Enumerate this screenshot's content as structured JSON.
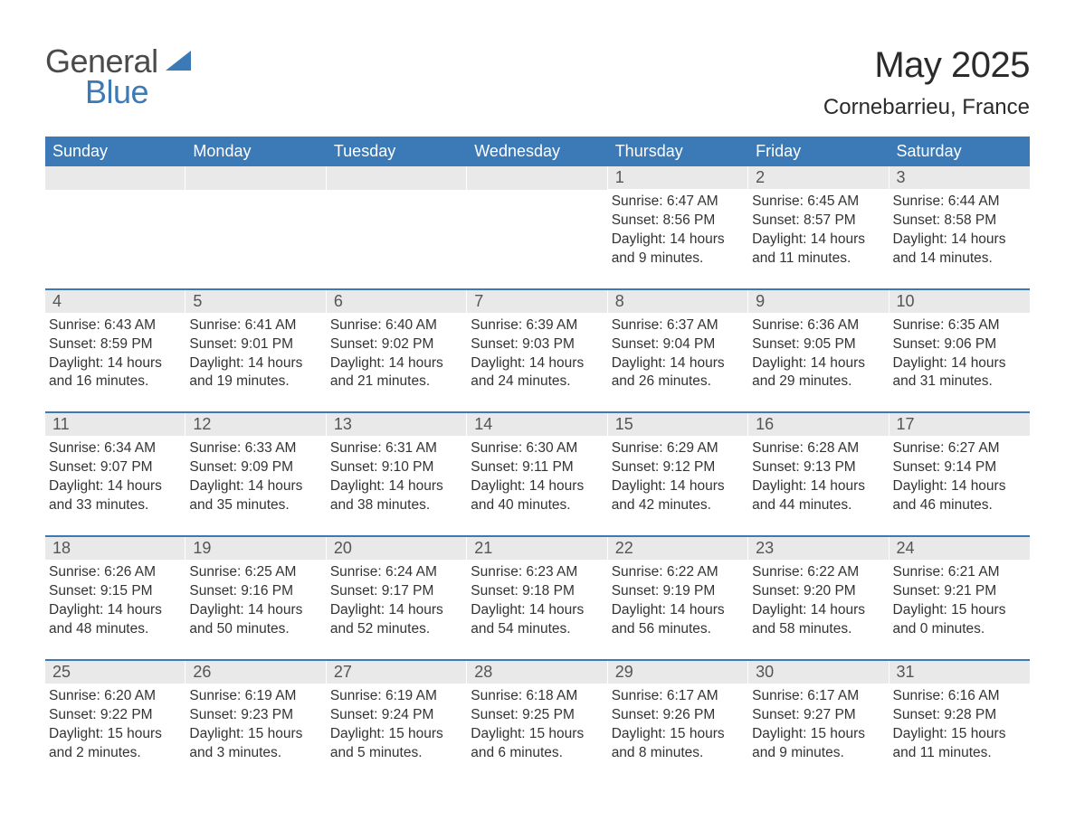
{
  "logo": {
    "word1": "General",
    "word2": "Blue",
    "tri_color": "#3b79b7"
  },
  "title": "May 2025",
  "subtitle": "Cornebarrieu, France",
  "colors": {
    "header_bg": "#3b79b7",
    "header_text": "#ffffff",
    "daynum_bg": "#e9e9e9",
    "daynum_text": "#555555",
    "body_text": "#333333",
    "week_border": "#3b79b7",
    "page_bg": "#ffffff"
  },
  "typography": {
    "title_fontsize": 40,
    "subtitle_fontsize": 24,
    "dow_fontsize": 18,
    "daynum_fontsize": 18,
    "body_fontsize": 15.5,
    "font_family": "Arial"
  },
  "calendar": {
    "type": "table",
    "columns": [
      "Sunday",
      "Monday",
      "Tuesday",
      "Wednesday",
      "Thursday",
      "Friday",
      "Saturday"
    ],
    "weeks": [
      [
        {
          "day": null
        },
        {
          "day": null
        },
        {
          "day": null
        },
        {
          "day": null
        },
        {
          "day": "1",
          "sunrise": "Sunrise: 6:47 AM",
          "sunset": "Sunset: 8:56 PM",
          "daylight": "Daylight: 14 hours and 9 minutes."
        },
        {
          "day": "2",
          "sunrise": "Sunrise: 6:45 AM",
          "sunset": "Sunset: 8:57 PM",
          "daylight": "Daylight: 14 hours and 11 minutes."
        },
        {
          "day": "3",
          "sunrise": "Sunrise: 6:44 AM",
          "sunset": "Sunset: 8:58 PM",
          "daylight": "Daylight: 14 hours and 14 minutes."
        }
      ],
      [
        {
          "day": "4",
          "sunrise": "Sunrise: 6:43 AM",
          "sunset": "Sunset: 8:59 PM",
          "daylight": "Daylight: 14 hours and 16 minutes."
        },
        {
          "day": "5",
          "sunrise": "Sunrise: 6:41 AM",
          "sunset": "Sunset: 9:01 PM",
          "daylight": "Daylight: 14 hours and 19 minutes."
        },
        {
          "day": "6",
          "sunrise": "Sunrise: 6:40 AM",
          "sunset": "Sunset: 9:02 PM",
          "daylight": "Daylight: 14 hours and 21 minutes."
        },
        {
          "day": "7",
          "sunrise": "Sunrise: 6:39 AM",
          "sunset": "Sunset: 9:03 PM",
          "daylight": "Daylight: 14 hours and 24 minutes."
        },
        {
          "day": "8",
          "sunrise": "Sunrise: 6:37 AM",
          "sunset": "Sunset: 9:04 PM",
          "daylight": "Daylight: 14 hours and 26 minutes."
        },
        {
          "day": "9",
          "sunrise": "Sunrise: 6:36 AM",
          "sunset": "Sunset: 9:05 PM",
          "daylight": "Daylight: 14 hours and 29 minutes."
        },
        {
          "day": "10",
          "sunrise": "Sunrise: 6:35 AM",
          "sunset": "Sunset: 9:06 PM",
          "daylight": "Daylight: 14 hours and 31 minutes."
        }
      ],
      [
        {
          "day": "11",
          "sunrise": "Sunrise: 6:34 AM",
          "sunset": "Sunset: 9:07 PM",
          "daylight": "Daylight: 14 hours and 33 minutes."
        },
        {
          "day": "12",
          "sunrise": "Sunrise: 6:33 AM",
          "sunset": "Sunset: 9:09 PM",
          "daylight": "Daylight: 14 hours and 35 minutes."
        },
        {
          "day": "13",
          "sunrise": "Sunrise: 6:31 AM",
          "sunset": "Sunset: 9:10 PM",
          "daylight": "Daylight: 14 hours and 38 minutes."
        },
        {
          "day": "14",
          "sunrise": "Sunrise: 6:30 AM",
          "sunset": "Sunset: 9:11 PM",
          "daylight": "Daylight: 14 hours and 40 minutes."
        },
        {
          "day": "15",
          "sunrise": "Sunrise: 6:29 AM",
          "sunset": "Sunset: 9:12 PM",
          "daylight": "Daylight: 14 hours and 42 minutes."
        },
        {
          "day": "16",
          "sunrise": "Sunrise: 6:28 AM",
          "sunset": "Sunset: 9:13 PM",
          "daylight": "Daylight: 14 hours and 44 minutes."
        },
        {
          "day": "17",
          "sunrise": "Sunrise: 6:27 AM",
          "sunset": "Sunset: 9:14 PM",
          "daylight": "Daylight: 14 hours and 46 minutes."
        }
      ],
      [
        {
          "day": "18",
          "sunrise": "Sunrise: 6:26 AM",
          "sunset": "Sunset: 9:15 PM",
          "daylight": "Daylight: 14 hours and 48 minutes."
        },
        {
          "day": "19",
          "sunrise": "Sunrise: 6:25 AM",
          "sunset": "Sunset: 9:16 PM",
          "daylight": "Daylight: 14 hours and 50 minutes."
        },
        {
          "day": "20",
          "sunrise": "Sunrise: 6:24 AM",
          "sunset": "Sunset: 9:17 PM",
          "daylight": "Daylight: 14 hours and 52 minutes."
        },
        {
          "day": "21",
          "sunrise": "Sunrise: 6:23 AM",
          "sunset": "Sunset: 9:18 PM",
          "daylight": "Daylight: 14 hours and 54 minutes."
        },
        {
          "day": "22",
          "sunrise": "Sunrise: 6:22 AM",
          "sunset": "Sunset: 9:19 PM",
          "daylight": "Daylight: 14 hours and 56 minutes."
        },
        {
          "day": "23",
          "sunrise": "Sunrise: 6:22 AM",
          "sunset": "Sunset: 9:20 PM",
          "daylight": "Daylight: 14 hours and 58 minutes."
        },
        {
          "day": "24",
          "sunrise": "Sunrise: 6:21 AM",
          "sunset": "Sunset: 9:21 PM",
          "daylight": "Daylight: 15 hours and 0 minutes."
        }
      ],
      [
        {
          "day": "25",
          "sunrise": "Sunrise: 6:20 AM",
          "sunset": "Sunset: 9:22 PM",
          "daylight": "Daylight: 15 hours and 2 minutes."
        },
        {
          "day": "26",
          "sunrise": "Sunrise: 6:19 AM",
          "sunset": "Sunset: 9:23 PM",
          "daylight": "Daylight: 15 hours and 3 minutes."
        },
        {
          "day": "27",
          "sunrise": "Sunrise: 6:19 AM",
          "sunset": "Sunset: 9:24 PM",
          "daylight": "Daylight: 15 hours and 5 minutes."
        },
        {
          "day": "28",
          "sunrise": "Sunrise: 6:18 AM",
          "sunset": "Sunset: 9:25 PM",
          "daylight": "Daylight: 15 hours and 6 minutes."
        },
        {
          "day": "29",
          "sunrise": "Sunrise: 6:17 AM",
          "sunset": "Sunset: 9:26 PM",
          "daylight": "Daylight: 15 hours and 8 minutes."
        },
        {
          "day": "30",
          "sunrise": "Sunrise: 6:17 AM",
          "sunset": "Sunset: 9:27 PM",
          "daylight": "Daylight: 15 hours and 9 minutes."
        },
        {
          "day": "31",
          "sunrise": "Sunrise: 6:16 AM",
          "sunset": "Sunset: 9:28 PM",
          "daylight": "Daylight: 15 hours and 11 minutes."
        }
      ]
    ]
  }
}
